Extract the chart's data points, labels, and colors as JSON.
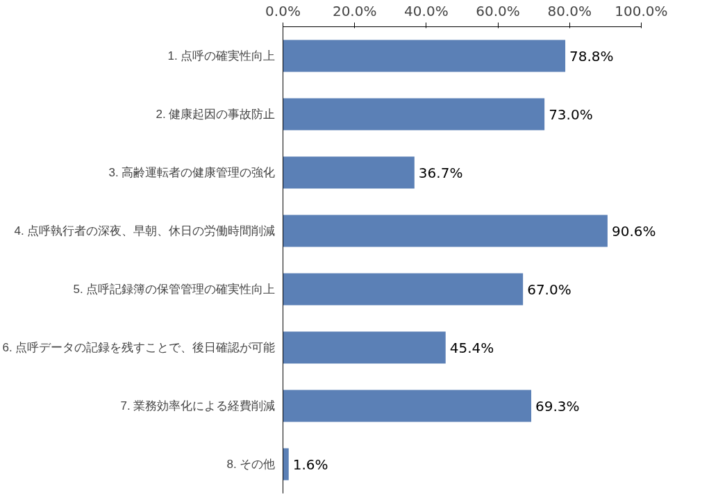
{
  "chart_data": {
    "type": "bar",
    "orientation": "horizontal",
    "categories": [
      "1. 点呼の確実性向上",
      "2. 健康起因の事故防止",
      "3. 高齢運転者の健康管理の強化",
      "4. 点呼執行者の深夜、早朝、休日の労働時間削減",
      "5. 点呼記録簿の保管管理の確実性向上",
      "6. 点呼データの記録を残すことで、後日確認が可能",
      "7. 業務効率化による経費削減",
      "8. その他"
    ],
    "values": [
      78.8,
      73.0,
      36.7,
      90.6,
      67.0,
      45.4,
      69.3,
      1.6
    ],
    "value_labels": [
      "78.8%",
      "73.0%",
      "36.7%",
      "90.6%",
      "67.0%",
      "45.4%",
      "69.3%",
      "1.6%"
    ],
    "color": "#5b80b6",
    "xlim": [
      0,
      100
    ],
    "xticks": [
      {
        "value": 0,
        "label": "0.0%"
      },
      {
        "value": 20,
        "label": "20.0%"
      },
      {
        "value": 40,
        "label": "40.0%"
      },
      {
        "value": 60,
        "label": "60.0%"
      },
      {
        "value": 80,
        "label": "80.0%"
      },
      {
        "value": 100,
        "label": "100.0%"
      }
    ],
    "grid": false
  }
}
